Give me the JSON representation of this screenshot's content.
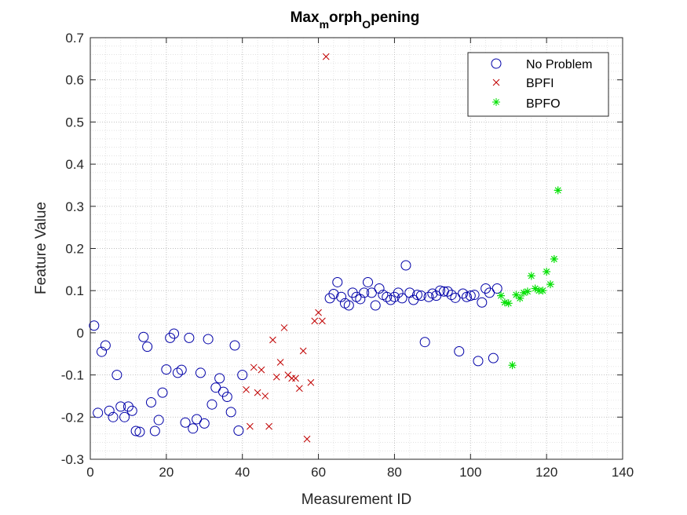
{
  "chart_data": {
    "type": "scatter",
    "title": "Max",
    "title_sub1": "m",
    "title_mid": "orph",
    "title_sub2": "O",
    "title_end": "pening",
    "xlabel": "Measurement ID",
    "ylabel": "Feature Value",
    "xlim": [
      0,
      140
    ],
    "ylim": [
      -0.3,
      0.7
    ],
    "xticks": [
      0,
      20,
      40,
      60,
      80,
      100,
      120,
      140
    ],
    "yticks": [
      -0.3,
      -0.2,
      -0.1,
      0,
      0.1,
      0.2,
      0.3,
      0.4,
      0.5,
      0.6,
      0.7
    ],
    "grid": "on (major and minor, dotted)",
    "legend_position": "top-right",
    "series": [
      {
        "name": "No Problem",
        "marker": "circle",
        "color": "#0000a8",
        "points": [
          [
            1,
            0.017
          ],
          [
            2,
            -0.19
          ],
          [
            3,
            -0.045
          ],
          [
            4,
            -0.03
          ],
          [
            5,
            -0.185
          ],
          [
            6,
            -0.2
          ],
          [
            7,
            -0.1
          ],
          [
            8,
            -0.175
          ],
          [
            9,
            -0.2
          ],
          [
            10,
            -0.175
          ],
          [
            11,
            -0.185
          ],
          [
            12,
            -0.233
          ],
          [
            13,
            -0.235
          ],
          [
            14,
            -0.01
          ],
          [
            15,
            -0.033
          ],
          [
            16,
            -0.165
          ],
          [
            17,
            -0.233
          ],
          [
            18,
            -0.207
          ],
          [
            19,
            -0.142
          ],
          [
            20,
            -0.087
          ],
          [
            21,
            -0.012
          ],
          [
            22,
            -0.002
          ],
          [
            23,
            -0.095
          ],
          [
            24,
            -0.088
          ],
          [
            25,
            -0.213
          ],
          [
            26,
            -0.012
          ],
          [
            27,
            -0.227
          ],
          [
            28,
            -0.205
          ],
          [
            29,
            -0.095
          ],
          [
            30,
            -0.215
          ],
          [
            31,
            -0.015
          ],
          [
            32,
            -0.17
          ],
          [
            33,
            -0.13
          ],
          [
            34,
            -0.108
          ],
          [
            35,
            -0.14
          ],
          [
            36,
            -0.152
          ],
          [
            37,
            -0.188
          ],
          [
            38,
            -0.03
          ],
          [
            39,
            -0.232
          ],
          [
            40,
            -0.1
          ],
          [
            63,
            0.082
          ],
          [
            64,
            0.092
          ],
          [
            65,
            0.12
          ],
          [
            66,
            0.085
          ],
          [
            67,
            0.07
          ],
          [
            68,
            0.065
          ],
          [
            69,
            0.095
          ],
          [
            70,
            0.085
          ],
          [
            71,
            0.08
          ],
          [
            72,
            0.095
          ],
          [
            73,
            0.12
          ],
          [
            74,
            0.095
          ],
          [
            75,
            0.065
          ],
          [
            76,
            0.105
          ],
          [
            77,
            0.09
          ],
          [
            78,
            0.085
          ],
          [
            79,
            0.078
          ],
          [
            80,
            0.085
          ],
          [
            81,
            0.095
          ],
          [
            82,
            0.082
          ],
          [
            83,
            0.16
          ],
          [
            84,
            0.095
          ],
          [
            85,
            0.078
          ],
          [
            86,
            0.09
          ],
          [
            87,
            0.088
          ],
          [
            88,
            -0.022
          ],
          [
            89,
            0.085
          ],
          [
            90,
            0.093
          ],
          [
            91,
            0.088
          ],
          [
            92,
            0.1
          ],
          [
            93,
            0.098
          ],
          [
            94,
            0.098
          ],
          [
            95,
            0.09
          ],
          [
            96,
            0.083
          ],
          [
            97,
            -0.044
          ],
          [
            98,
            0.093
          ],
          [
            99,
            0.085
          ],
          [
            100,
            0.088
          ],
          [
            101,
            0.09
          ],
          [
            102,
            -0.067
          ],
          [
            103,
            0.072
          ],
          [
            104,
            0.105
          ],
          [
            105,
            0.095
          ],
          [
            106,
            -0.06
          ],
          [
            107,
            0.105
          ]
        ]
      },
      {
        "name": "BPFI",
        "marker": "x",
        "color": "#c00000",
        "points": [
          [
            41,
            -0.135
          ],
          [
            42,
            -0.222
          ],
          [
            43,
            -0.082
          ],
          [
            44,
            -0.142
          ],
          [
            45,
            -0.088
          ],
          [
            46,
            -0.15
          ],
          [
            47,
            -0.222
          ],
          [
            48,
            -0.017
          ],
          [
            49,
            -0.105
          ],
          [
            50,
            -0.07
          ],
          [
            51,
            0.012
          ],
          [
            52,
            -0.1
          ],
          [
            53,
            -0.108
          ],
          [
            54,
            -0.108
          ],
          [
            55,
            -0.132
          ],
          [
            56,
            -0.043
          ],
          [
            57,
            -0.252
          ],
          [
            58,
            -0.118
          ],
          [
            59,
            0.028
          ],
          [
            60,
            0.048
          ],
          [
            61,
            0.028
          ],
          [
            62,
            0.655
          ]
        ]
      },
      {
        "name": "BPFO",
        "marker": "asterisk",
        "color": "#00e000",
        "points": [
          [
            108,
            0.088
          ],
          [
            109,
            0.072
          ],
          [
            110,
            0.07
          ],
          [
            111,
            -0.077
          ],
          [
            112,
            0.09
          ],
          [
            113,
            0.082
          ],
          [
            114,
            0.095
          ],
          [
            115,
            0.098
          ],
          [
            116,
            0.135
          ],
          [
            117,
            0.105
          ],
          [
            118,
            0.1
          ],
          [
            119,
            0.1
          ],
          [
            120,
            0.145
          ],
          [
            121,
            0.115
          ],
          [
            122,
            0.175
          ],
          [
            123,
            0.338
          ]
        ]
      }
    ]
  }
}
